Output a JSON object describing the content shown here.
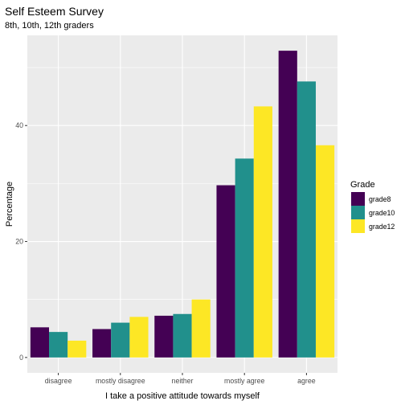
{
  "chart_data": {
    "type": "bar",
    "title": "Self Esteem Survey",
    "subtitle": "8th, 10th, 12th graders",
    "xlabel": "I take a positive attitude towards myself",
    "ylabel": "Percentage",
    "categories": [
      "disagree",
      "mostly disagree",
      "neither",
      "mostly agree",
      "agree"
    ],
    "series": [
      {
        "name": "grade8",
        "values": [
          5.2,
          4.9,
          7.2,
          29.7,
          52.9
        ],
        "color": "#440154"
      },
      {
        "name": "grade10",
        "values": [
          4.4,
          6.0,
          7.5,
          34.3,
          47.6
        ],
        "color": "#21908C"
      },
      {
        "name": "grade12",
        "values": [
          2.9,
          7.0,
          10.0,
          43.3,
          36.6
        ],
        "color": "#FDE725"
      }
    ],
    "ylim": [
      -2.65,
      55.55
    ],
    "yticks": [
      0,
      20,
      40
    ],
    "grid": true,
    "legend": {
      "title": "Grade",
      "position": "right"
    },
    "background": "#EBEBEB",
    "grid_color": "#FFFFFF"
  }
}
